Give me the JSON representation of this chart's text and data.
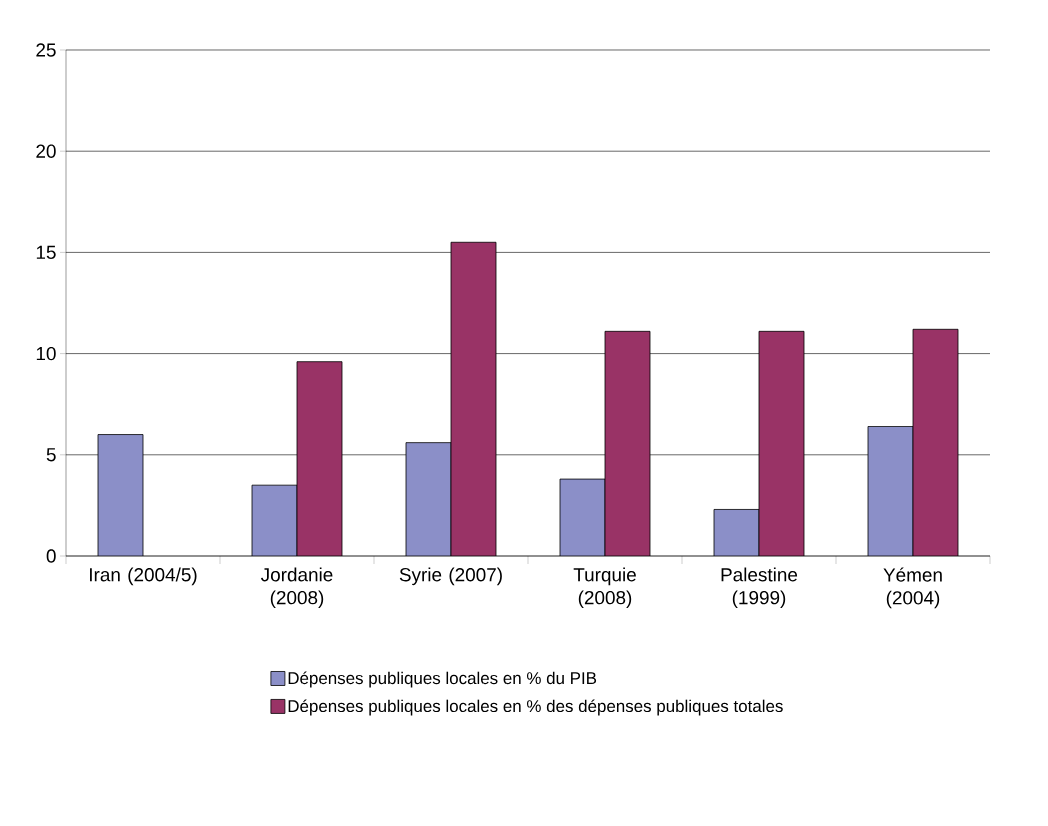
{
  "chart_data": {
    "type": "bar",
    "categories": [
      "Iran (2004/5)",
      "Jordanie (2008)",
      "Syrie (2007)",
      "Turquie (2008)",
      "Palestine (1999)",
      "Yémen (2004)"
    ],
    "series": [
      {
        "name": "Dépenses publiques locales en % du PIB",
        "color": "#8b8fc8",
        "values": [
          6.0,
          3.5,
          5.6,
          3.8,
          2.3,
          6.4
        ]
      },
      {
        "name": "Dépenses publiques locales en % des dépenses publiques totales",
        "color": "#993366",
        "values": [
          null,
          9.6,
          15.5,
          11.1,
          11.1,
          11.2
        ]
      }
    ],
    "ylim": [
      0,
      25
    ],
    "yticks": [
      0,
      5,
      10,
      15,
      20,
      25
    ],
    "grid": "y",
    "legend": "bottom"
  }
}
